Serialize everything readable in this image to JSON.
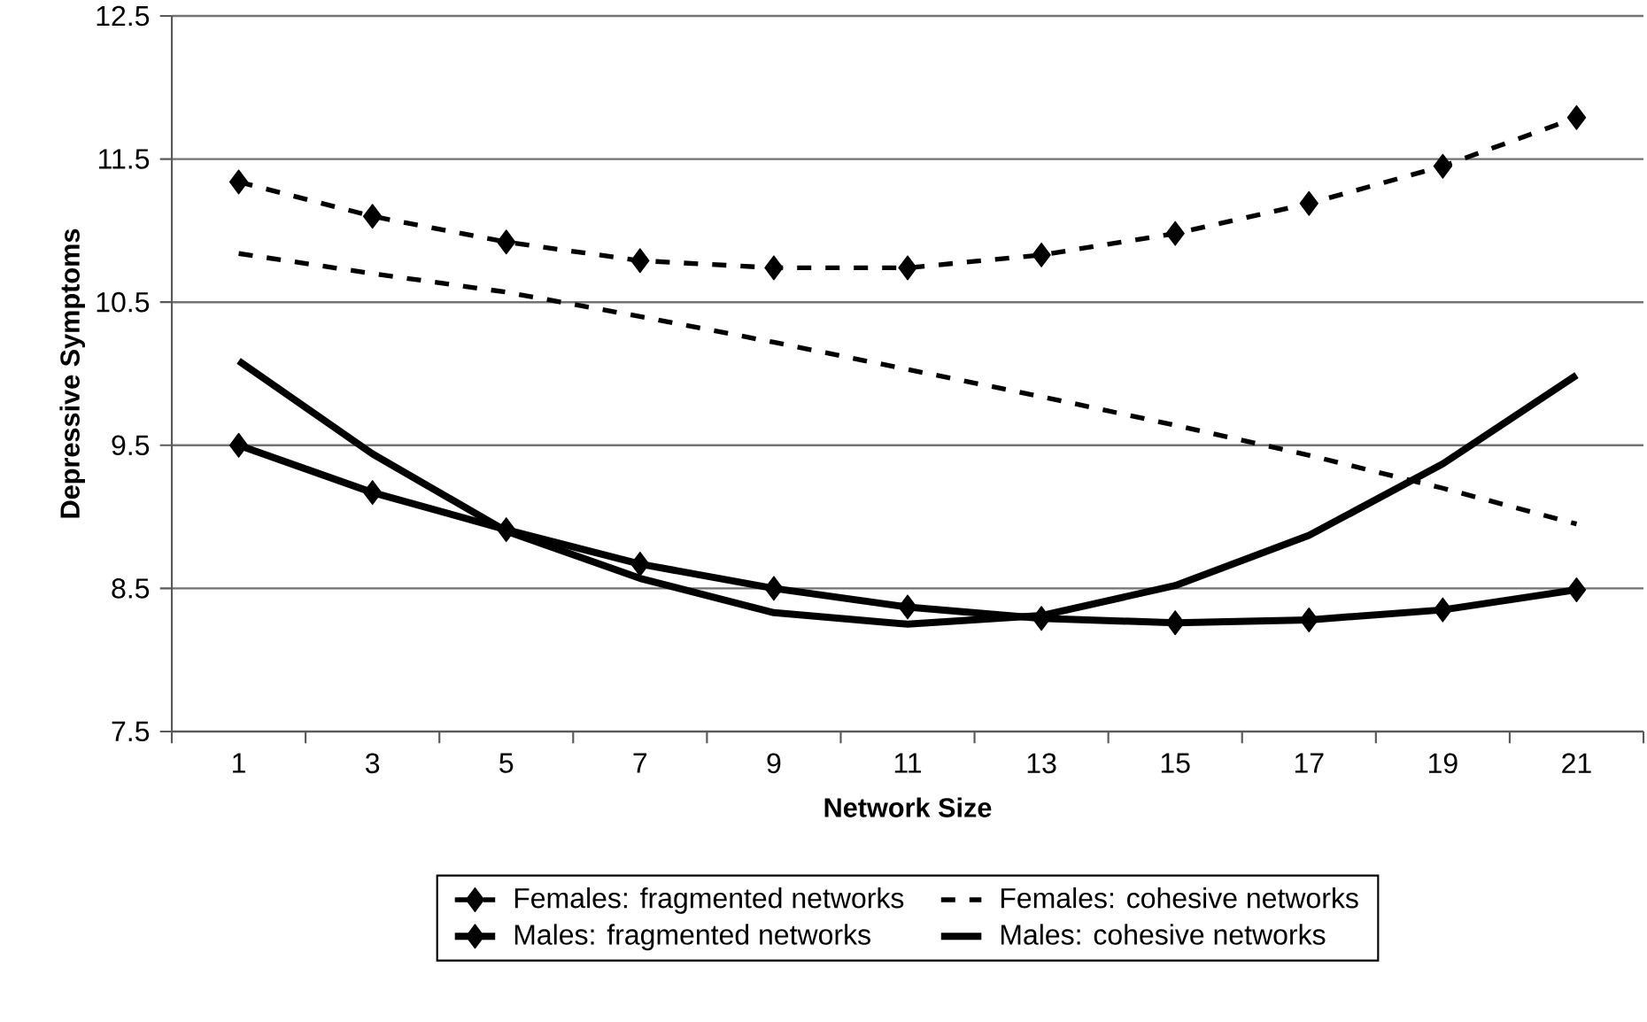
{
  "chart_data": {
    "type": "line",
    "xlabel": "Network Size",
    "ylabel": "Depressive Symptoms",
    "categories": [
      "1",
      "3",
      "5",
      "7",
      "9",
      "11",
      "13",
      "15",
      "17",
      "19",
      "21"
    ],
    "ylim": [
      7.5,
      12.5
    ],
    "yticks": [
      7.5,
      8.5,
      9.5,
      10.5,
      11.5,
      12.5
    ],
    "grid": "y",
    "legend": "bottom",
    "series": [
      {
        "name": "Females: fragmented networks",
        "color": "#000000",
        "marker": "diamond",
        "line_style": "dashed",
        "values": [
          11.34,
          11.1,
          10.92,
          10.79,
          10.74,
          10.74,
          10.83,
          10.98,
          11.19,
          11.45,
          11.79
        ]
      },
      {
        "name": "Females: cohesive networks",
        "color": "#000000",
        "marker": "none",
        "line_style": "dashed",
        "values": [
          10.84,
          10.7,
          10.57,
          10.4,
          10.22,
          10.03,
          9.84,
          9.64,
          9.43,
          9.2,
          8.95
        ]
      },
      {
        "name": "Males: fragmented networks",
        "color": "#000000",
        "marker": "diamond",
        "line_style": "solid",
        "values": [
          9.5,
          9.17,
          8.91,
          8.67,
          8.5,
          8.37,
          8.29,
          8.26,
          8.28,
          8.35,
          8.49
        ]
      },
      {
        "name": "Males: cohesive networks",
        "color": "#000000",
        "marker": "none",
        "line_style": "solid",
        "values": [
          10.09,
          9.44,
          8.9,
          8.57,
          8.33,
          8.25,
          8.31,
          8.52,
          8.87,
          9.37,
          9.99
        ]
      }
    ]
  }
}
